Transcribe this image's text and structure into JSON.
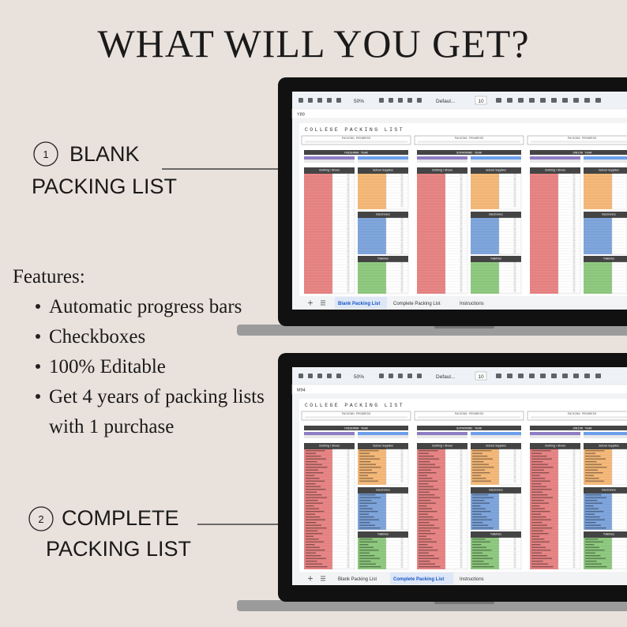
{
  "header": {
    "title": "WHAT WILL YOU GET?"
  },
  "items": [
    {
      "number": "1",
      "lines": [
        "BLANK",
        "PACKING LIST"
      ]
    },
    {
      "number": "2",
      "lines": [
        "COMPLETE",
        "PACKING LIST"
      ]
    }
  ],
  "features": {
    "heading": "Features:",
    "bullets": [
      "Automatic progress bars",
      "Checkboxes",
      "100% Editable",
      "Get 4 years of packing lists",
      "with 1 purchase"
    ]
  },
  "screens": [
    {
      "cell": "Y89",
      "zoom": "50%",
      "font": "Defaul...",
      "size": "10",
      "sheet_title": "COLLEGE PACKING LIST",
      "progress_label": "PACKING PROGRESS",
      "years": [
        "FRESHMAN YEAR",
        "SOPHOMORE YEAR",
        "JUNIOR YEAR"
      ],
      "sections": [
        "Clothing / Shoes",
        "School Supplies",
        "Electronics",
        "Toiletries"
      ],
      "tabs": [
        "Blank Packing List",
        "Complete Packing List",
        "Instructions"
      ],
      "active_tab": 0
    },
    {
      "cell": "M94",
      "zoom": "50%",
      "font": "Defaul...",
      "size": "10",
      "sheet_title": "COLLEGE PACKING LIST",
      "progress_label": "PACKING PROGRESS",
      "years": [
        "FRESHMAN YEAR",
        "SOPHOMORE YEAR",
        "JUNIOR YEAR"
      ],
      "sections": [
        "Clothing / Shoes",
        "School Supplies",
        "Electronics",
        "Toiletries"
      ],
      "tabs": [
        "Blank Packing List",
        "Complete Packing List",
        "Instructions"
      ],
      "active_tab": 1
    }
  ]
}
